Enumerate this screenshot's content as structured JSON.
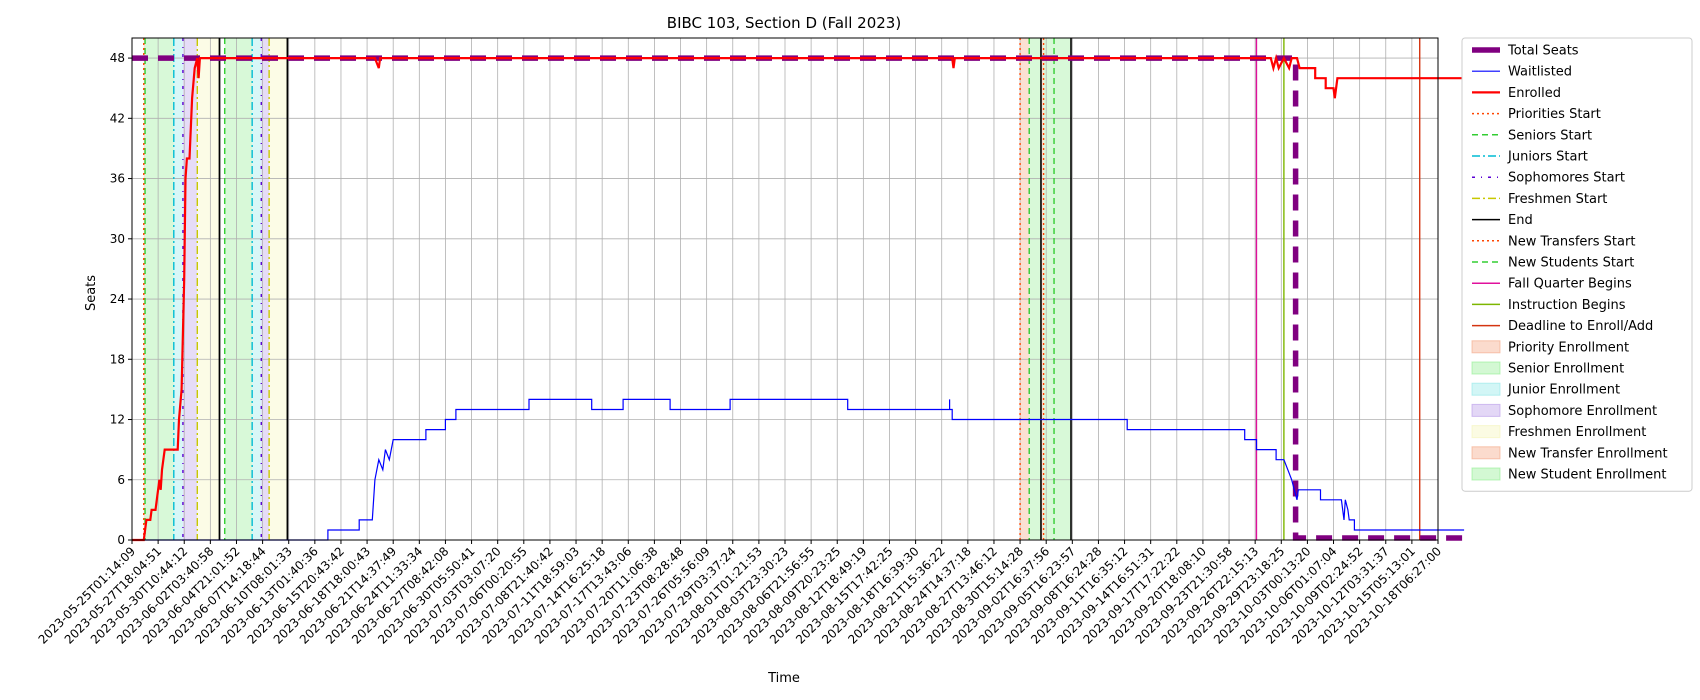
{
  "chart_data": {
    "type": "line",
    "title": "BIBC 103, Section D (Fall 2023)",
    "xlabel": "Time",
    "ylabel": "Seats",
    "ylim": [
      0,
      50
    ],
    "yticks": [
      0,
      6,
      12,
      18,
      24,
      30,
      36,
      42,
      48
    ],
    "xlim": [
      "2023-05-25T01:14:09",
      "2023-10-18T06:27:00"
    ],
    "xticks": [
      "2023-05-25T01:14:09",
      "2023-05-27T18:04:51",
      "2023-05-30T10:44:12",
      "2023-06-02T03:40:58",
      "2023-06-04T21:01:52",
      "2023-06-07T14:18:44",
      "2023-06-10T08:01:33",
      "2023-06-13T01:40:36",
      "2023-06-15T20:43:42",
      "2023-06-18T18:00:43",
      "2023-06-21T14:37:49",
      "2023-06-24T11:33:34",
      "2023-06-27T08:42:08",
      "2023-06-30T05:50:41",
      "2023-07-03T03:07:20",
      "2023-07-06T00:20:55",
      "2023-07-08T21:40:42",
      "2023-07-11T18:59:03",
      "2023-07-14T16:25:18",
      "2023-07-17T13:43:06",
      "2023-07-20T11:06:38",
      "2023-07-23T08:28:48",
      "2023-07-26T05:56:09",
      "2023-07-29T03:37:24",
      "2023-08-01T01:21:53",
      "2023-08-03T23:30:23",
      "2023-08-06T21:56:55",
      "2023-08-09T20:23:25",
      "2023-08-12T18:49:19",
      "2023-08-15T17:42:25",
      "2023-08-18T16:39:30",
      "2023-08-21T15:36:22",
      "2023-08-24T14:37:18",
      "2023-08-27T13:46:12",
      "2023-08-30T15:14:28",
      "2023-09-02T16:37:56",
      "2023-09-05T16:23:57",
      "2023-09-08T16:24:28",
      "2023-09-11T16:35:12",
      "2023-09-14T16:51:31",
      "2023-09-17T17:22:22",
      "2023-09-20T18:08:10",
      "2023-09-23T21:30:58",
      "2023-09-26T22:15:13",
      "2023-09-29T23:18:25",
      "2023-10-03T00:13:20",
      "2023-10-06T01:07:04",
      "2023-10-09T02:24:52",
      "2023-10-12T03:31:37",
      "2023-10-15T05:13:01",
      "2023-10-18T06:27:00"
    ],
    "grid": true,
    "legend_position": "outside-right",
    "series": [
      {
        "name": "Total Seats",
        "color": "#800080",
        "style": "dashed-thick",
        "points": [
          [
            0,
            48
          ],
          [
            44.55,
            48
          ],
          [
            44.55,
            0.2
          ],
          [
            51,
            0.2
          ]
        ]
      },
      {
        "name": "Waitlisted",
        "color": "#0000ff",
        "style": "solid-thin",
        "points": [
          [
            0,
            0
          ],
          [
            3.3,
            0
          ],
          [
            3.3,
            0
          ],
          [
            7.5,
            0
          ],
          [
            7.5,
            1
          ],
          [
            8.7,
            1
          ],
          [
            8.7,
            2
          ],
          [
            9.2,
            2
          ],
          [
            9.3,
            6
          ],
          [
            9.45,
            8
          ],
          [
            9.6,
            7
          ],
          [
            9.7,
            9
          ],
          [
            9.85,
            8
          ],
          [
            10,
            10
          ],
          [
            11.25,
            10
          ],
          [
            11.25,
            11
          ],
          [
            12.0,
            11
          ],
          [
            12.0,
            12
          ],
          [
            12.4,
            12
          ],
          [
            12.4,
            13
          ],
          [
            15.2,
            13
          ],
          [
            15.2,
            14
          ],
          [
            17.6,
            14
          ],
          [
            17.6,
            13
          ],
          [
            18.8,
            13
          ],
          [
            18.8,
            14
          ],
          [
            20.6,
            14
          ],
          [
            20.6,
            13
          ],
          [
            22.9,
            13
          ],
          [
            22.9,
            14
          ],
          [
            27.4,
            14
          ],
          [
            27.4,
            13
          ],
          [
            31.3,
            13
          ],
          [
            31.3,
            14
          ],
          [
            31.3,
            13
          ],
          [
            31.4,
            13
          ],
          [
            31.4,
            12
          ],
          [
            38.1,
            12
          ],
          [
            38.1,
            11
          ],
          [
            42.6,
            11
          ],
          [
            42.6,
            10
          ],
          [
            43.05,
            10
          ],
          [
            43.05,
            9
          ],
          [
            43.8,
            9
          ],
          [
            43.8,
            8
          ],
          [
            44.1,
            8
          ],
          [
            44.25,
            7
          ],
          [
            44.4,
            6
          ],
          [
            44.5,
            5
          ],
          [
            44.6,
            4
          ],
          [
            44.65,
            5
          ],
          [
            45.5,
            5
          ],
          [
            45.5,
            4
          ],
          [
            46.3,
            4
          ],
          [
            46.4,
            2
          ],
          [
            46.45,
            4
          ],
          [
            46.55,
            3
          ],
          [
            46.6,
            2
          ],
          [
            46.8,
            2
          ],
          [
            46.8,
            1
          ],
          [
            51,
            1
          ]
        ]
      },
      {
        "name": "Enrolled",
        "color": "#ff0000",
        "style": "solid-thick",
        "points": [
          [
            0,
            0
          ],
          [
            0.45,
            0
          ],
          [
            0.55,
            2
          ],
          [
            0.7,
            2
          ],
          [
            0.75,
            3
          ],
          [
            0.9,
            3
          ],
          [
            0.95,
            4
          ],
          [
            1.0,
            5
          ],
          [
            1.05,
            6
          ],
          [
            1.1,
            5
          ],
          [
            1.15,
            7
          ],
          [
            1.25,
            9
          ],
          [
            1.5,
            9
          ],
          [
            1.6,
            9
          ],
          [
            1.75,
            9
          ],
          [
            1.8,
            12
          ],
          [
            1.9,
            15
          ],
          [
            2.0,
            26
          ],
          [
            2.05,
            36
          ],
          [
            2.1,
            38
          ],
          [
            2.2,
            38
          ],
          [
            2.3,
            44
          ],
          [
            2.4,
            47
          ],
          [
            2.5,
            48
          ],
          [
            2.55,
            46
          ],
          [
            2.6,
            48
          ],
          [
            2.7,
            48
          ],
          [
            4.7,
            48
          ],
          [
            4.75,
            48
          ],
          [
            7.0,
            48
          ],
          [
            7.05,
            48
          ],
          [
            9.2,
            48
          ],
          [
            9.3,
            48
          ],
          [
            9.45,
            47
          ],
          [
            9.5,
            48
          ],
          [
            31.4,
            48
          ],
          [
            31.45,
            47
          ],
          [
            31.5,
            48
          ],
          [
            43.6,
            48
          ],
          [
            43.7,
            47
          ],
          [
            43.8,
            48
          ],
          [
            43.9,
            47
          ],
          [
            44.1,
            48
          ],
          [
            44.3,
            47
          ],
          [
            44.4,
            48
          ],
          [
            44.55,
            48
          ],
          [
            44.6,
            48
          ],
          [
            44.7,
            47
          ],
          [
            45.3,
            47
          ],
          [
            45.3,
            46
          ],
          [
            45.7,
            46
          ],
          [
            45.7,
            45
          ],
          [
            46.0,
            45
          ],
          [
            46.05,
            44
          ],
          [
            46.15,
            46
          ],
          [
            51,
            46
          ]
        ]
      }
    ],
    "events": [
      {
        "name": "Priorities Start",
        "color": "#ff4500",
        "style": "dotted",
        "x": [
          0.45,
          34.0
        ]
      },
      {
        "name": "Seniors Start",
        "color": "#32cd32",
        "style": "dashed",
        "x": [
          0.5,
          3.55
        ]
      },
      {
        "name": "Juniors Start",
        "color": "#00bcd4",
        "style": "dashdot",
        "x": [
          1.6,
          4.6
        ]
      },
      {
        "name": "Sophomores Start",
        "color": "#5b00d4",
        "style": "dashdot-sparse",
        "x": [
          1.95,
          4.95
        ]
      },
      {
        "name": "Freshmen Start",
        "color": "#c8c800",
        "style": "dashdot",
        "x": [
          2.5,
          5.25
        ]
      },
      {
        "name": "End",
        "color": "#000000",
        "style": "solid",
        "x": [
          3.35,
          5.95
        ]
      },
      {
        "name": "New Transfers Start",
        "color": "#ff4500",
        "style": "dotted",
        "x": [
          34.9
        ]
      },
      {
        "name": "New Students Start",
        "color": "#32cd32",
        "style": "dashed",
        "x": [
          34.35,
          35.3
        ]
      },
      {
        "name": "Fall Quarter Begins",
        "color": "#e0109c",
        "style": "solid",
        "x": [
          43.05
        ]
      },
      {
        "name": "Instruction Begins",
        "color": "#7db600",
        "style": "solid",
        "x": [
          44.1
        ]
      },
      {
        "name": "Deadline to Enroll/Add",
        "color": "#d43410",
        "style": "solid",
        "x": [
          49.3
        ]
      }
    ],
    "end_lines": [
      3.35,
      5.95,
      34.8,
      35.95
    ],
    "shaded_periods": [
      {
        "name": "Priority Enrollment",
        "color": "#f4a582",
        "ranges": [
          [
            0.45,
            0.5
          ],
          [
            34.0,
            34.35
          ]
        ]
      },
      {
        "name": "Senior Enrollment",
        "color": "#90ee90",
        "ranges": [
          [
            0.5,
            1.6
          ],
          [
            3.55,
            4.6
          ]
        ]
      },
      {
        "name": "Junior Enrollment",
        "color": "#8fe8e8",
        "ranges": [
          [
            1.6,
            1.95
          ],
          [
            4.6,
            4.95
          ]
        ]
      },
      {
        "name": "Sophomore Enrollment",
        "color": "#b89ae8",
        "ranges": [
          [
            1.95,
            2.5
          ],
          [
            4.95,
            5.25
          ]
        ]
      },
      {
        "name": "Freshmen Enrollment",
        "color": "#f5f5b8",
        "ranges": [
          [
            2.5,
            3.35
          ],
          [
            5.25,
            5.95
          ]
        ]
      },
      {
        "name": "New Transfer Enrollment",
        "color": "#f4a582",
        "ranges": [
          [
            34.8,
            34.9
          ]
        ]
      },
      {
        "name": "New Student Enrollment",
        "color": "#90ee90",
        "ranges": [
          [
            34.35,
            34.8
          ],
          [
            34.9,
            35.95
          ]
        ]
      }
    ]
  }
}
